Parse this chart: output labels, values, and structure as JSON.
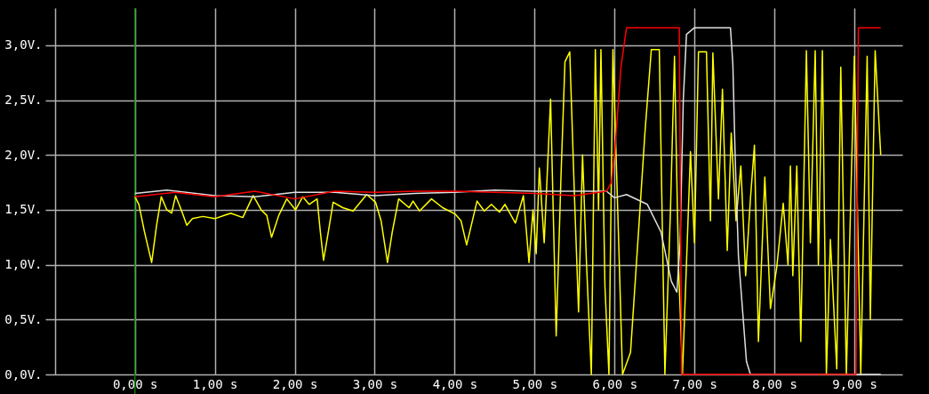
{
  "chart_data": {
    "type": "line",
    "xlim": [
      -1.12,
      9.6
    ],
    "ylim": [
      0,
      3.34
    ],
    "xticks": [
      {
        "value": -1,
        "label": null
      },
      {
        "value": 0,
        "label": "0,00 s"
      },
      {
        "value": 1,
        "label": "1,00 s"
      },
      {
        "value": 2,
        "label": "2,00 s"
      },
      {
        "value": 3,
        "label": "3,00 s"
      },
      {
        "value": 4,
        "label": "4,00 s"
      },
      {
        "value": 5,
        "label": "5,00 s"
      },
      {
        "value": 6,
        "label": "6,00 s"
      },
      {
        "value": 7,
        "label": "7,00 s"
      },
      {
        "value": 8,
        "label": "8,00 s"
      },
      {
        "value": 9,
        "label": "9,00 s"
      }
    ],
    "yticks": [
      {
        "value": 0,
        "label": "0,0V."
      },
      {
        "value": 0.5,
        "label": "0,5V."
      },
      {
        "value": 1,
        "label": "1,0V."
      },
      {
        "value": 1.5,
        "label": "1,5V."
      },
      {
        "value": 2,
        "label": "2,0V."
      },
      {
        "value": 2.5,
        "label": "2,5V."
      },
      {
        "value": 3,
        "label": "3,0V."
      }
    ],
    "grid": true,
    "ref_lines": [
      {
        "axis": "x",
        "value": 0,
        "color": "#008000"
      }
    ],
    "series": [
      {
        "color": "#ffff00",
        "x": [
          0,
          0.05,
          0.12,
          0.21,
          0.27,
          0.33,
          0.4,
          0.46,
          0.51,
          0.58,
          0.65,
          0.72,
          0.85,
          1.0,
          1.2,
          1.35,
          1.48,
          1.58,
          1.65,
          1.71,
          1.8,
          1.9,
          2.01,
          2.1,
          2.18,
          2.28,
          2.32,
          2.36,
          2.42,
          2.48,
          2.6,
          2.73,
          2.9,
          3.01,
          3.08,
          3.16,
          3.22,
          3.3,
          3.43,
          3.48,
          3.56,
          3.71,
          3.85,
          4.01,
          4.08,
          4.15,
          4.28,
          4.37,
          4.46,
          4.56,
          4.63,
          4.76,
          4.86,
          4.93,
          4.98,
          5.02,
          5.06,
          5.12,
          5.2,
          5.27,
          5.33,
          5.38,
          5.44,
          5.5,
          5.55,
          5.6,
          5.65,
          5.71,
          5.76,
          5.8,
          5.83,
          5.88,
          5.93,
          5.98,
          6.04,
          6.1,
          6.2,
          6.3,
          6.38,
          6.46,
          6.56,
          6.63,
          6.7,
          6.75,
          6.8,
          6.85,
          6.95,
          7.0,
          7.05,
          7.15,
          7.2,
          7.23,
          7.3,
          7.35,
          7.41,
          7.46,
          7.52,
          7.58,
          7.64,
          7.7,
          7.75,
          7.8,
          7.88,
          7.95,
          8.03,
          8.11,
          8.17,
          8.2,
          8.23,
          8.28,
          8.33,
          8.4,
          8.45,
          8.51,
          8.55,
          8.6,
          8.65,
          8.7,
          8.78,
          8.83,
          8.9,
          9.0,
          9.08,
          9.16,
          9.2,
          9.26,
          9.33
        ],
        "values": [
          1.62,
          1.55,
          1.3,
          1.02,
          1.35,
          1.62,
          1.5,
          1.47,
          1.63,
          1.5,
          1.36,
          1.42,
          1.44,
          1.42,
          1.47,
          1.43,
          1.63,
          1.5,
          1.45,
          1.25,
          1.45,
          1.6,
          1.5,
          1.62,
          1.55,
          1.6,
          1.3,
          1.04,
          1.3,
          1.57,
          1.52,
          1.49,
          1.64,
          1.57,
          1.4,
          1.02,
          1.3,
          1.6,
          1.52,
          1.58,
          1.49,
          1.6,
          1.52,
          1.46,
          1.4,
          1.18,
          1.58,
          1.49,
          1.55,
          1.48,
          1.55,
          1.38,
          1.63,
          1.02,
          1.5,
          1.1,
          1.88,
          1.2,
          2.51,
          0.35,
          1.8,
          2.85,
          2.94,
          1.6,
          0.57,
          2.0,
          1.0,
          0.0,
          2.96,
          1.5,
          2.96,
          0.8,
          0.0,
          2.96,
          1.5,
          0.0,
          0.2,
          1.3,
          2.2,
          2.96,
          2.96,
          0.0,
          1.5,
          2.9,
          1.0,
          0.0,
          2.03,
          1.2,
          2.94,
          2.94,
          1.4,
          2.93,
          1.6,
          2.6,
          1.13,
          2.2,
          1.4,
          1.9,
          0.9,
          1.6,
          2.09,
          0.3,
          1.8,
          0.6,
          0.98,
          1.56,
          1.0,
          1.9,
          0.9,
          1.9,
          0.3,
          2.95,
          1.2,
          2.95,
          1.0,
          2.95,
          0.0,
          1.23,
          0.05,
          2.8,
          0.0,
          2.9,
          0.0,
          2.9,
          0.5,
          2.95,
          2.0
        ]
      },
      {
        "color": "#e0e0e0",
        "x": [
          0,
          0.4,
          1.0,
          1.5,
          2.0,
          2.5,
          3.0,
          3.5,
          4.0,
          4.5,
          5.0,
          5.5,
          5.9,
          6.0,
          6.15,
          6.41,
          6.58,
          6.71,
          6.78,
          6.82,
          6.86,
          6.9,
          7.0,
          7.45,
          7.48,
          7.51,
          7.55,
          7.65,
          7.7,
          9.33
        ],
        "values": [
          1.65,
          1.68,
          1.63,
          1.62,
          1.66,
          1.66,
          1.63,
          1.65,
          1.66,
          1.68,
          1.67,
          1.67,
          1.67,
          1.61,
          1.64,
          1.55,
          1.3,
          0.85,
          0.75,
          1.2,
          2.5,
          3.1,
          3.16,
          3.16,
          2.83,
          1.96,
          1.08,
          0.12,
          0.0,
          0.0
        ]
      },
      {
        "color": "#ff0000",
        "x": [
          0,
          0.5,
          1.0,
          1.5,
          2.0,
          2.5,
          3.0,
          3.5,
          4.0,
          4.5,
          5.0,
          5.5,
          5.9,
          5.96,
          6.0,
          6.08,
          6.15,
          6.81,
          6.84,
          9.02,
          9.05,
          9.33
        ],
        "values": [
          1.62,
          1.66,
          1.62,
          1.67,
          1.6,
          1.67,
          1.66,
          1.67,
          1.67,
          1.66,
          1.65,
          1.63,
          1.67,
          1.75,
          2.0,
          2.8,
          3.16,
          3.16,
          0.0,
          0.0,
          3.16,
          3.16
        ]
      }
    ]
  }
}
